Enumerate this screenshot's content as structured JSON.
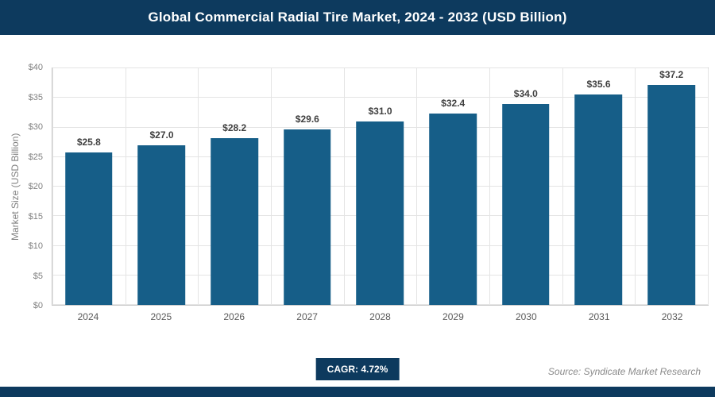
{
  "header": {
    "title": "Global Commercial Radial Tire Market, 2024 - 2032 (USD Billion)"
  },
  "chart_data": {
    "type": "bar",
    "title": "Global Commercial Radial Tire Market, 2024 - 2032 (USD Billion)",
    "categories": [
      "2024",
      "2025",
      "2026",
      "2027",
      "2028",
      "2029",
      "2030",
      "2031",
      "2032"
    ],
    "values": [
      25.8,
      27.0,
      28.2,
      29.6,
      31.0,
      32.4,
      34.0,
      35.6,
      37.2
    ],
    "value_labels": [
      "$25.8",
      "$27.0",
      "$28.2",
      "$29.6",
      "$31.0",
      "$32.4",
      "$34.0",
      "$35.6",
      "$37.2"
    ],
    "xlabel": "",
    "ylabel": "Market Size (USD Billion)",
    "ylim": [
      0,
      40
    ],
    "yticks": [
      0,
      5,
      10,
      15,
      20,
      25,
      30,
      35,
      40
    ],
    "ytick_labels": [
      "$0",
      "$5",
      "$10",
      "$15",
      "$20",
      "$25",
      "$30",
      "$35",
      "$40"
    ],
    "grid": true,
    "legend": false,
    "bar_color": "#165e88"
  },
  "footer": {
    "cagr_label": "CAGR: 4.72%",
    "source": "Source: Syndicate Market Research"
  },
  "colors": {
    "banner": "#0d3a5e",
    "bar": "#165e88"
  }
}
